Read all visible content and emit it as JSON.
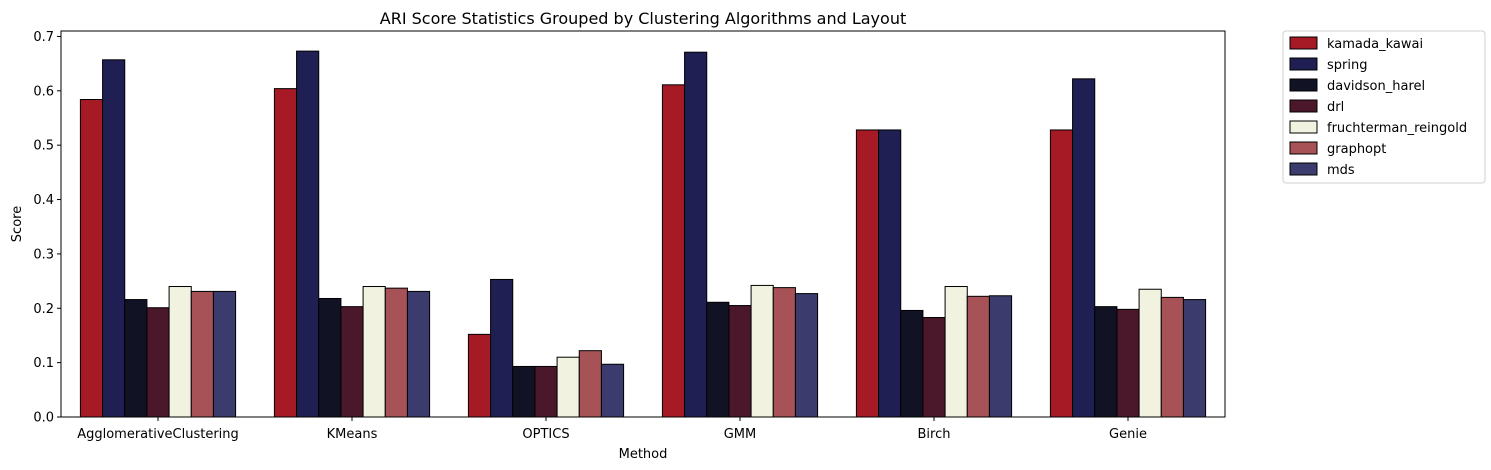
{
  "chart_data": {
    "type": "bar",
    "title": "ARI Score Statistics Grouped by Clustering Algorithms and Layout",
    "xlabel": "Method",
    "ylabel": "Score",
    "ylim": [
      0,
      0.71
    ],
    "yticks": [
      0.0,
      0.1,
      0.2,
      0.3,
      0.4,
      0.5,
      0.6,
      0.7
    ],
    "ytick_labels": [
      "0.0",
      "0.1",
      "0.2",
      "0.3",
      "0.4",
      "0.5",
      "0.6",
      "0.7"
    ],
    "categories": [
      "AgglomerativeClustering",
      "KMeans",
      "OPTICS",
      "GMM",
      "Birch",
      "Genie"
    ],
    "legend_position": "outside-top-right",
    "grid": false,
    "series": [
      {
        "name": "kamada_kawai",
        "color": "#a51a25",
        "values": [
          0.584,
          0.604,
          0.152,
          0.611,
          0.528,
          0.528
        ]
      },
      {
        "name": "spring",
        "color": "#1f1f53",
        "values": [
          0.657,
          0.673,
          0.253,
          0.671,
          0.528,
          0.622
        ]
      },
      {
        "name": "davidson_harel",
        "color": "#121225",
        "values": [
          0.216,
          0.218,
          0.093,
          0.211,
          0.196,
          0.203
        ]
      },
      {
        "name": "drl",
        "color": "#4a172b",
        "values": [
          0.201,
          0.203,
          0.093,
          0.205,
          0.183,
          0.198
        ]
      },
      {
        "name": "fruchterman_reingold",
        "color": "#f2f2e0",
        "values": [
          0.24,
          0.24,
          0.11,
          0.242,
          0.24,
          0.235
        ]
      },
      {
        "name": "graphopt",
        "color": "#a65257",
        "values": [
          0.231,
          0.237,
          0.122,
          0.238,
          0.222,
          0.22
        ]
      },
      {
        "name": "mds",
        "color": "#3b3b6e",
        "values": [
          0.231,
          0.231,
          0.097,
          0.227,
          0.223,
          0.216
        ]
      }
    ]
  }
}
